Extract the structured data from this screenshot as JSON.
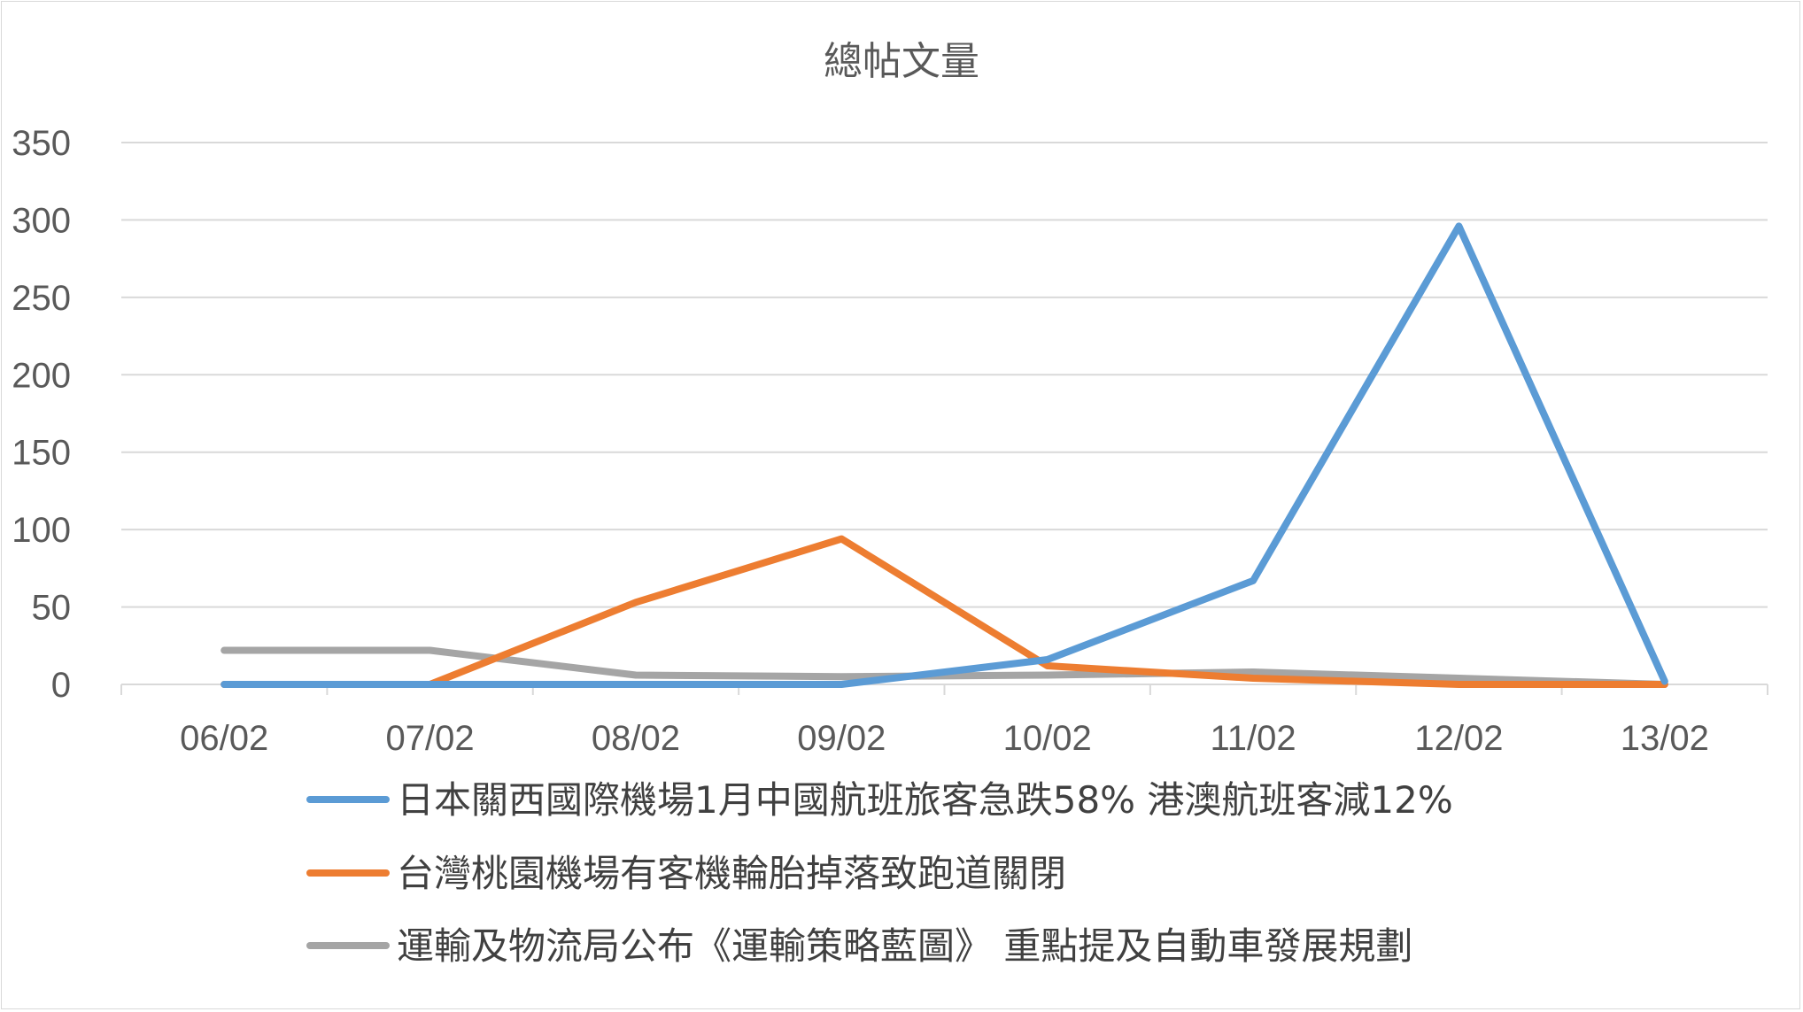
{
  "chart_data": {
    "type": "line",
    "title": "總帖文量",
    "categories": [
      "06/02",
      "07/02",
      "08/02",
      "09/02",
      "10/02",
      "11/02",
      "12/02",
      "13/02"
    ],
    "ylim": [
      0,
      350
    ],
    "yticks": [
      0,
      50,
      100,
      150,
      200,
      250,
      300,
      350
    ],
    "grid": true,
    "legend_position": "bottom",
    "series": [
      {
        "name": "日本關西國際機場1月中國航班旅客急跌58% 港澳航班客減12%",
        "color": "#5b9bd5",
        "values": [
          0,
          0,
          0,
          0,
          16,
          67,
          296,
          2
        ]
      },
      {
        "name": "台灣桃園機場有客機輪胎掉落致跑道關閉",
        "color": "#ed7d31",
        "values": [
          0,
          0,
          53,
          94,
          12,
          4,
          0,
          0
        ]
      },
      {
        "name": "運輸及物流局公布《運輸策略藍圖》 重點提及自動車發展規劃",
        "color": "#a5a5a5",
        "values": [
          22,
          22,
          6,
          5,
          6,
          8,
          4,
          0
        ]
      }
    ]
  }
}
